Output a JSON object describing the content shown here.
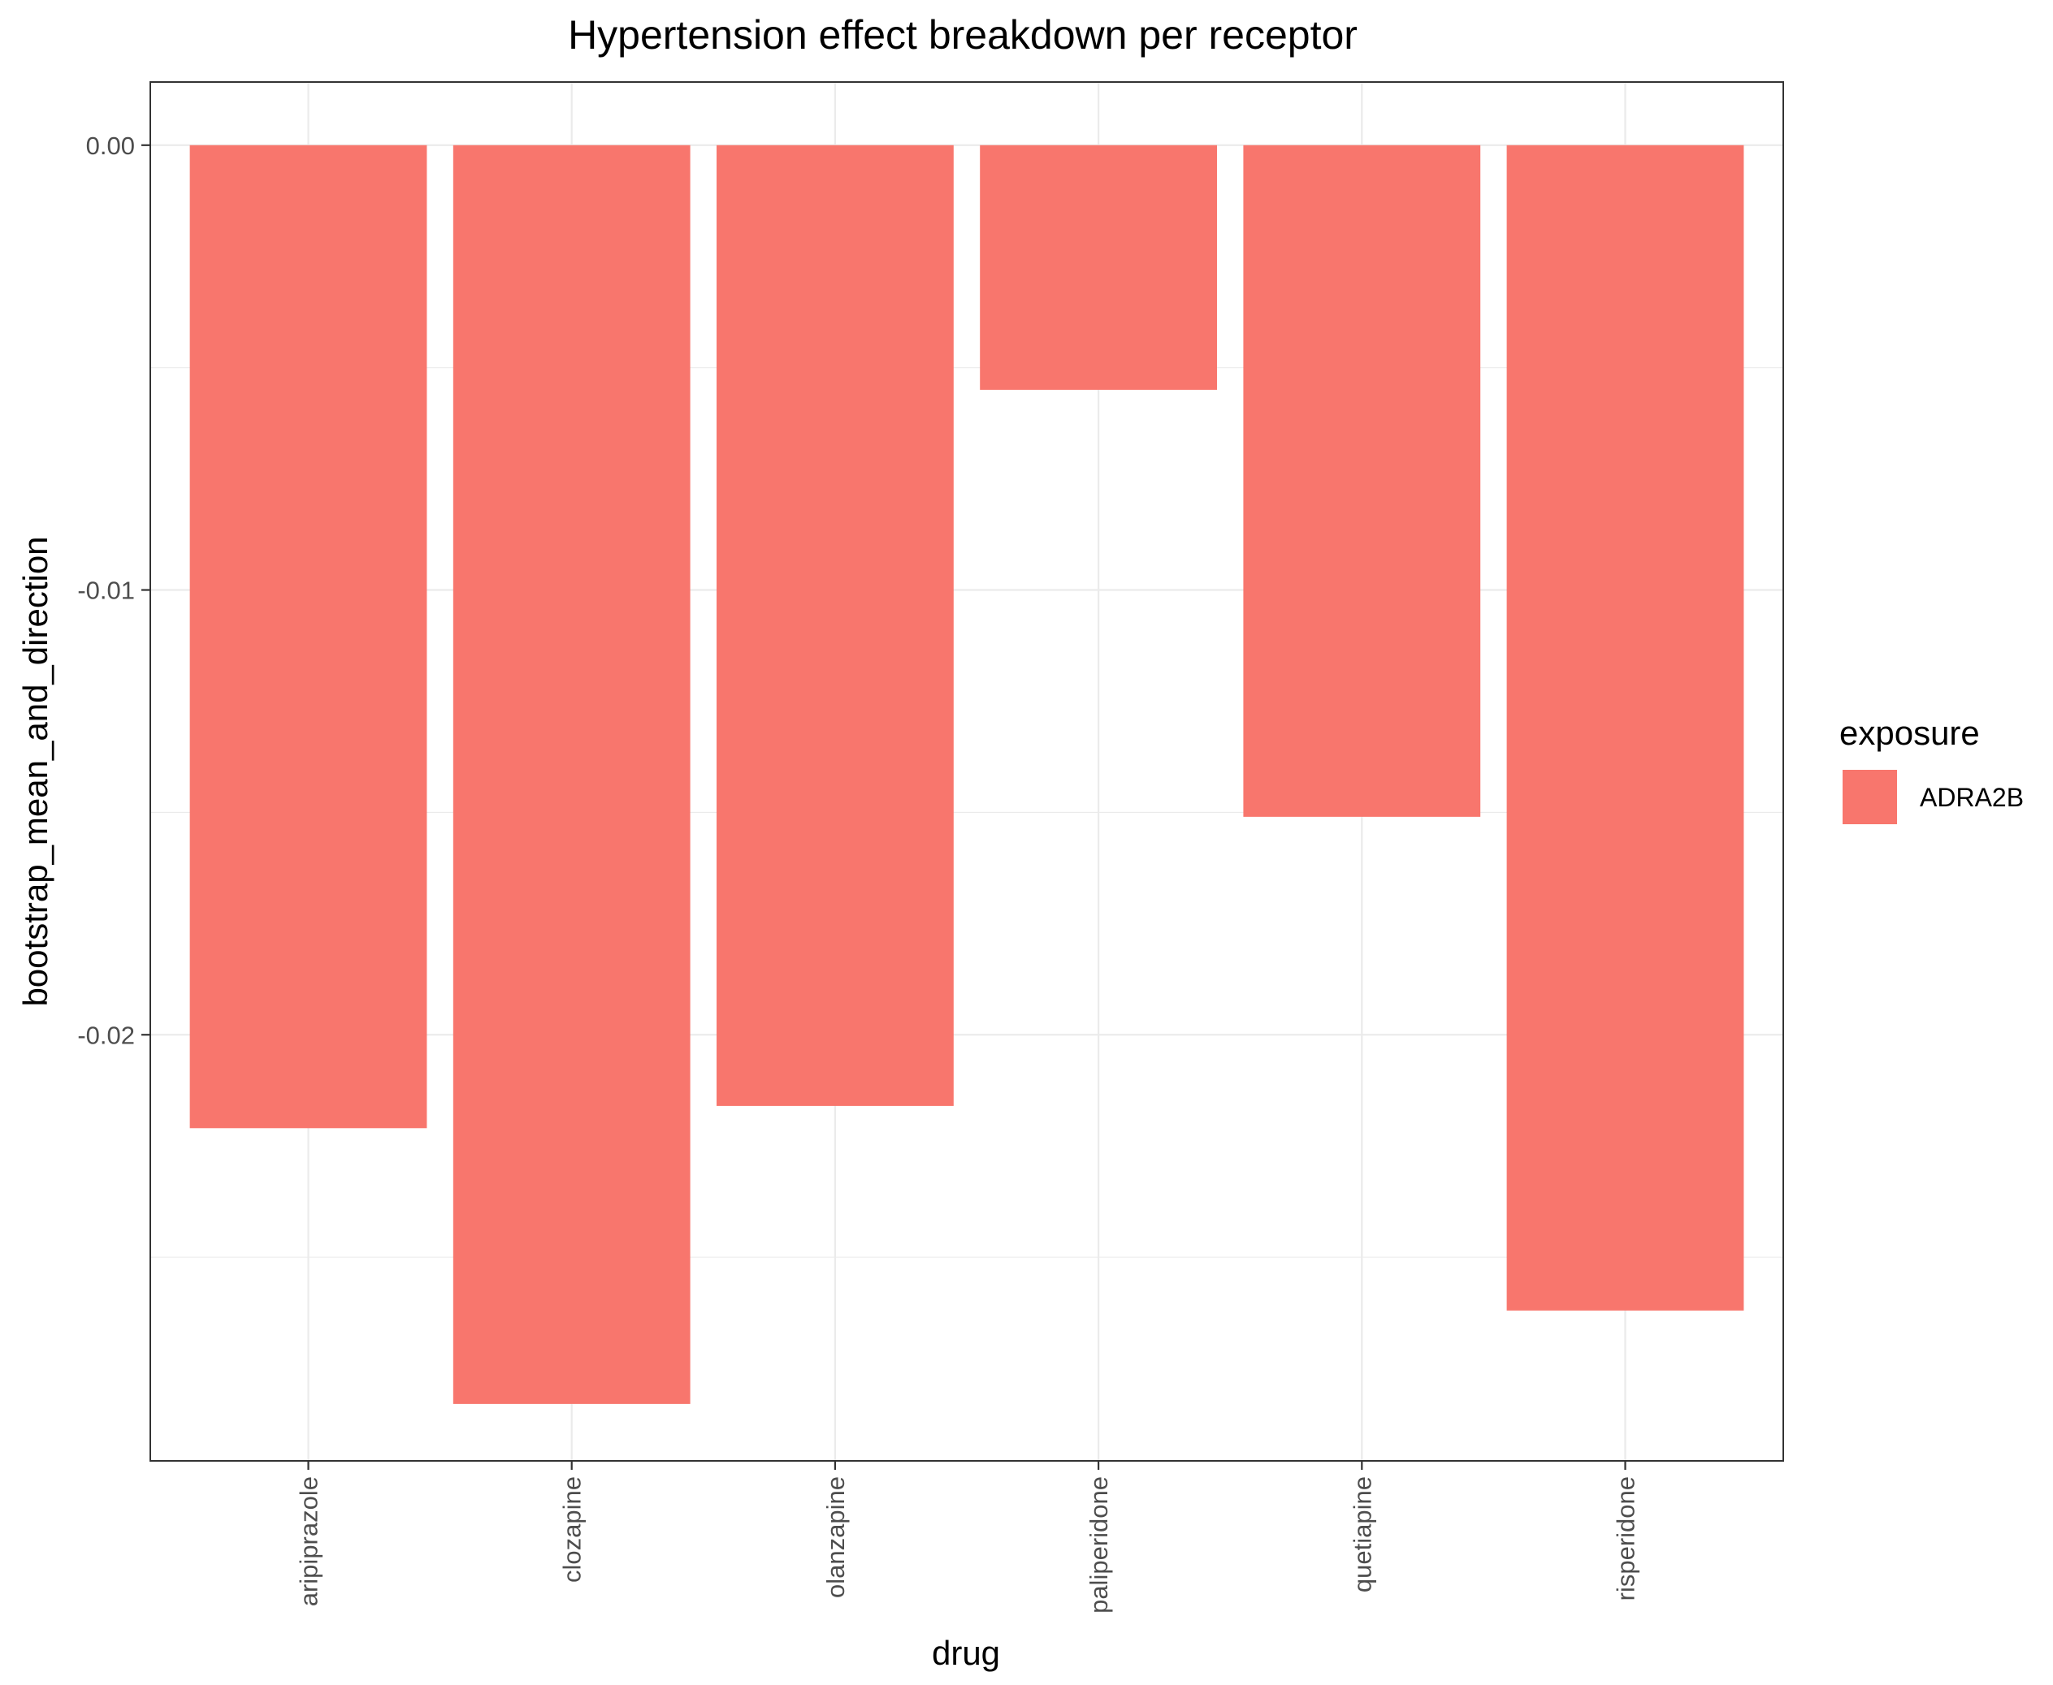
{
  "chart_data": {
    "type": "bar",
    "title": "Hypertension effect breakdown per receptor",
    "xlabel": "drug",
    "ylabel": "bootstrap_mean_and_direction",
    "categories": [
      "aripiprazole",
      "clozapine",
      "olanzapine",
      "paliperidone",
      "quetiapine",
      "risperidone"
    ],
    "series": [
      {
        "name": "ADRA2B",
        "color": "#F8766D",
        "values": [
          -0.0221,
          -0.0283,
          -0.0216,
          -0.0055,
          -0.0151,
          -0.0262
        ]
      }
    ],
    "yticks": [
      {
        "value": 0,
        "label": "0.00"
      },
      {
        "value": -0.01,
        "label": "-0.01"
      },
      {
        "value": -0.02,
        "label": "-0.02"
      }
    ],
    "yminor": [
      -0.005,
      -0.015,
      -0.025
    ],
    "ylim": [
      -0.02958,
      0.00142
    ],
    "grid": true,
    "legend": {
      "title": "exposure",
      "position": "right"
    }
  }
}
